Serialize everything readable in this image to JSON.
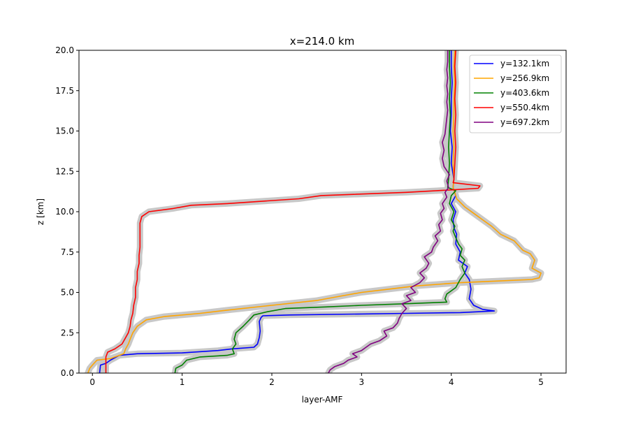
{
  "chart_data": {
    "type": "line",
    "title": "x=214.0 km",
    "xlabel": "layer-AMF",
    "ylabel": "z [km]",
    "xlim": [
      -0.15,
      5.28
    ],
    "ylim": [
      0,
      20
    ],
    "xticks": [
      0,
      1,
      2,
      3,
      4,
      5
    ],
    "yticks": [
      0.0,
      2.5,
      5.0,
      7.5,
      10.0,
      12.5,
      15.0,
      17.5,
      20.0
    ],
    "xtick_labels": [
      "0",
      "1",
      "2",
      "3",
      "4",
      "5"
    ],
    "ytick_labels": [
      "0.0",
      "2.5",
      "5.0",
      "7.5",
      "10.0",
      "12.5",
      "15.0",
      "17.5",
      "20.0"
    ],
    "grid": false,
    "legend_position": "top-right",
    "uncertainty_band_color": "#c8c8c8",
    "series": [
      {
        "name": "y=132.1km",
        "color": "#0000ff",
        "points": [
          [
            0.08,
            0
          ],
          [
            0.09,
            0.5
          ],
          [
            0.15,
            0.6
          ],
          [
            0.2,
            0.8
          ],
          [
            0.3,
            1.1
          ],
          [
            0.5,
            1.2
          ],
          [
            1.0,
            1.25
          ],
          [
            1.4,
            1.4
          ],
          [
            1.55,
            1.5
          ],
          [
            1.8,
            1.6
          ],
          [
            1.84,
            1.8
          ],
          [
            1.86,
            2.2
          ],
          [
            1.87,
            2.6
          ],
          [
            1.86,
            3.2
          ],
          [
            1.88,
            3.45
          ],
          [
            1.9,
            3.55
          ],
          [
            2.2,
            3.6
          ],
          [
            3.5,
            3.7
          ],
          [
            4.1,
            3.75
          ],
          [
            4.48,
            3.85
          ],
          [
            4.35,
            3.95
          ],
          [
            4.25,
            4.2
          ],
          [
            4.2,
            4.6
          ],
          [
            4.22,
            5.2
          ],
          [
            4.2,
            5.8
          ],
          [
            4.15,
            6.2
          ],
          [
            4.18,
            6.6
          ],
          [
            4.08,
            7.0
          ],
          [
            4.1,
            7.5
          ],
          [
            4.05,
            8.0
          ],
          [
            4.06,
            8.6
          ],
          [
            4.03,
            9.0
          ],
          [
            4.02,
            9.5
          ],
          [
            4.05,
            10.0
          ],
          [
            4.0,
            10.5
          ],
          [
            4.05,
            11.0
          ],
          [
            4.02,
            11.5
          ],
          [
            4.03,
            12.0
          ],
          [
            4.0,
            13.0
          ],
          [
            4.01,
            14.0
          ],
          [
            3.99,
            15.0
          ],
          [
            4.0,
            16.0
          ],
          [
            4.0,
            17.0
          ],
          [
            4.01,
            18.0
          ],
          [
            4.0,
            19.0
          ],
          [
            4.0,
            20.0
          ]
        ]
      },
      {
        "name": "y=256.9km",
        "color": "#ffa500",
        "points": [
          [
            -0.05,
            0
          ],
          [
            -0.03,
            0.3
          ],
          [
            0.0,
            0.5
          ],
          [
            0.05,
            0.8
          ],
          [
            0.2,
            0.9
          ],
          [
            0.35,
            1.2
          ],
          [
            0.37,
            1.5
          ],
          [
            0.4,
            1.8
          ],
          [
            0.42,
            2.1
          ],
          [
            0.45,
            2.5
          ],
          [
            0.5,
            2.9
          ],
          [
            0.6,
            3.3
          ],
          [
            0.8,
            3.5
          ],
          [
            1.2,
            3.7
          ],
          [
            1.5,
            3.9
          ],
          [
            2.0,
            4.2
          ],
          [
            2.5,
            4.5
          ],
          [
            2.7,
            4.7
          ],
          [
            3.0,
            5.0
          ],
          [
            3.3,
            5.2
          ],
          [
            3.6,
            5.4
          ],
          [
            4.1,
            5.6
          ],
          [
            4.5,
            5.7
          ],
          [
            4.9,
            5.8
          ],
          [
            4.98,
            5.9
          ],
          [
            5.0,
            6.2
          ],
          [
            4.9,
            6.5
          ],
          [
            4.93,
            7.0
          ],
          [
            4.88,
            7.4
          ],
          [
            4.8,
            7.6
          ],
          [
            4.75,
            7.9
          ],
          [
            4.7,
            8.2
          ],
          [
            4.55,
            8.6
          ],
          [
            4.45,
            9.1
          ],
          [
            4.35,
            9.5
          ],
          [
            4.25,
            9.9
          ],
          [
            4.15,
            10.3
          ],
          [
            4.06,
            10.8
          ],
          [
            4.04,
            11.2
          ],
          [
            4.02,
            11.5
          ],
          [
            4.03,
            12.0
          ],
          [
            4.02,
            13.0
          ],
          [
            4.03,
            14.0
          ],
          [
            4.02,
            15.0
          ],
          [
            4.03,
            16.0
          ],
          [
            4.03,
            17.0
          ],
          [
            4.04,
            18.0
          ],
          [
            4.03,
            19.0
          ],
          [
            4.04,
            20.0
          ]
        ]
      },
      {
        "name": "y=403.6km",
        "color": "#008000",
        "points": [
          [
            0.92,
            0
          ],
          [
            0.93,
            0.3
          ],
          [
            1.0,
            0.5
          ],
          [
            1.05,
            0.8
          ],
          [
            1.2,
            1.0
          ],
          [
            1.5,
            1.1
          ],
          [
            1.58,
            1.2
          ],
          [
            1.56,
            1.5
          ],
          [
            1.6,
            1.8
          ],
          [
            1.58,
            2.1
          ],
          [
            1.6,
            2.5
          ],
          [
            1.68,
            2.9
          ],
          [
            1.75,
            3.3
          ],
          [
            1.8,
            3.6
          ],
          [
            1.95,
            3.8
          ],
          [
            2.15,
            4.0
          ],
          [
            2.6,
            4.1
          ],
          [
            3.0,
            4.2
          ],
          [
            3.5,
            4.3
          ],
          [
            3.95,
            4.4
          ],
          [
            3.93,
            4.6
          ],
          [
            3.95,
            4.9
          ],
          [
            4.05,
            5.3
          ],
          [
            4.1,
            5.8
          ],
          [
            4.15,
            6.2
          ],
          [
            4.12,
            6.6
          ],
          [
            4.15,
            7.0
          ],
          [
            4.1,
            7.3
          ],
          [
            4.12,
            7.7
          ],
          [
            4.08,
            8.0
          ],
          [
            4.05,
            8.4
          ],
          [
            4.02,
            8.8
          ],
          [
            4.04,
            9.1
          ],
          [
            4.0,
            9.5
          ],
          [
            4.03,
            10.0
          ],
          [
            3.98,
            10.5
          ],
          [
            4.0,
            11.0
          ],
          [
            4.05,
            11.3
          ],
          [
            3.96,
            11.5
          ],
          [
            3.97,
            12.0
          ],
          [
            3.98,
            13.0
          ],
          [
            3.97,
            14.0
          ],
          [
            3.98,
            15.0
          ],
          [
            3.99,
            16.0
          ],
          [
            3.98,
            17.0
          ],
          [
            3.99,
            18.0
          ],
          [
            3.98,
            19.0
          ],
          [
            3.98,
            20.0
          ]
        ]
      },
      {
        "name": "y=550.4km",
        "color": "#ff0000",
        "points": [
          [
            0.15,
            0
          ],
          [
            0.15,
            0.5
          ],
          [
            0.15,
            1.0
          ],
          [
            0.17,
            1.3
          ],
          [
            0.25,
            1.5
          ],
          [
            0.33,
            1.8
          ],
          [
            0.36,
            2.1
          ],
          [
            0.4,
            2.5
          ],
          [
            0.42,
            2.9
          ],
          [
            0.43,
            3.3
          ],
          [
            0.45,
            3.7
          ],
          [
            0.46,
            4.2
          ],
          [
            0.48,
            4.7
          ],
          [
            0.48,
            5.3
          ],
          [
            0.5,
            5.8
          ],
          [
            0.5,
            6.3
          ],
          [
            0.52,
            6.8
          ],
          [
            0.52,
            7.3
          ],
          [
            0.53,
            7.8
          ],
          [
            0.53,
            8.3
          ],
          [
            0.53,
            8.8
          ],
          [
            0.53,
            9.3
          ],
          [
            0.55,
            9.7
          ],
          [
            0.63,
            10.0
          ],
          [
            0.9,
            10.2
          ],
          [
            1.1,
            10.4
          ],
          [
            1.5,
            10.5
          ],
          [
            2.3,
            10.8
          ],
          [
            2.55,
            11.0
          ],
          [
            3.5,
            11.2
          ],
          [
            4.0,
            11.35
          ],
          [
            4.3,
            11.45
          ],
          [
            4.32,
            11.6
          ],
          [
            4.02,
            11.8
          ],
          [
            4.03,
            12.0
          ],
          [
            4.04,
            13.0
          ],
          [
            4.05,
            14.0
          ],
          [
            4.04,
            15.0
          ],
          [
            4.05,
            16.0
          ],
          [
            4.04,
            17.0
          ],
          [
            4.05,
            18.0
          ],
          [
            4.04,
            19.0
          ],
          [
            4.05,
            20.0
          ]
        ]
      },
      {
        "name": "y=697.2km",
        "color": "#800080",
        "points": [
          [
            2.63,
            0
          ],
          [
            2.65,
            0.2
          ],
          [
            2.7,
            0.4
          ],
          [
            2.8,
            0.6
          ],
          [
            2.85,
            0.8
          ],
          [
            2.95,
            1.0
          ],
          [
            2.9,
            1.2
          ],
          [
            3.0,
            1.4
          ],
          [
            3.05,
            1.6
          ],
          [
            3.1,
            1.8
          ],
          [
            3.2,
            2.0
          ],
          [
            3.28,
            2.3
          ],
          [
            3.25,
            2.6
          ],
          [
            3.35,
            2.8
          ],
          [
            3.4,
            3.1
          ],
          [
            3.42,
            3.4
          ],
          [
            3.45,
            3.7
          ],
          [
            3.5,
            4.0
          ],
          [
            3.45,
            4.3
          ],
          [
            3.55,
            4.5
          ],
          [
            3.5,
            4.8
          ],
          [
            3.6,
            5.0
          ],
          [
            3.55,
            5.3
          ],
          [
            3.65,
            5.6
          ],
          [
            3.7,
            5.9
          ],
          [
            3.65,
            6.2
          ],
          [
            3.72,
            6.5
          ],
          [
            3.75,
            6.8
          ],
          [
            3.7,
            7.2
          ],
          [
            3.78,
            7.5
          ],
          [
            3.8,
            7.8
          ],
          [
            3.85,
            8.2
          ],
          [
            3.82,
            8.5
          ],
          [
            3.88,
            8.8
          ],
          [
            3.86,
            9.2
          ],
          [
            3.9,
            9.5
          ],
          [
            3.88,
            9.9
          ],
          [
            3.92,
            10.2
          ],
          [
            3.9,
            10.5
          ],
          [
            3.95,
            10.9
          ],
          [
            3.93,
            11.2
          ],
          [
            3.97,
            11.5
          ],
          [
            3.95,
            11.9
          ],
          [
            3.98,
            12.3
          ],
          [
            3.92,
            12.8
          ],
          [
            3.9,
            13.3
          ],
          [
            3.92,
            13.8
          ],
          [
            3.9,
            14.3
          ],
          [
            3.93,
            14.8
          ],
          [
            3.94,
            15.3
          ],
          [
            3.95,
            15.8
          ],
          [
            3.96,
            16.3
          ],
          [
            3.95,
            16.8
          ],
          [
            3.96,
            17.3
          ],
          [
            3.95,
            17.8
          ],
          [
            3.96,
            18.3
          ],
          [
            3.95,
            18.8
          ],
          [
            3.96,
            19.3
          ],
          [
            3.96,
            20.0
          ]
        ]
      }
    ]
  }
}
